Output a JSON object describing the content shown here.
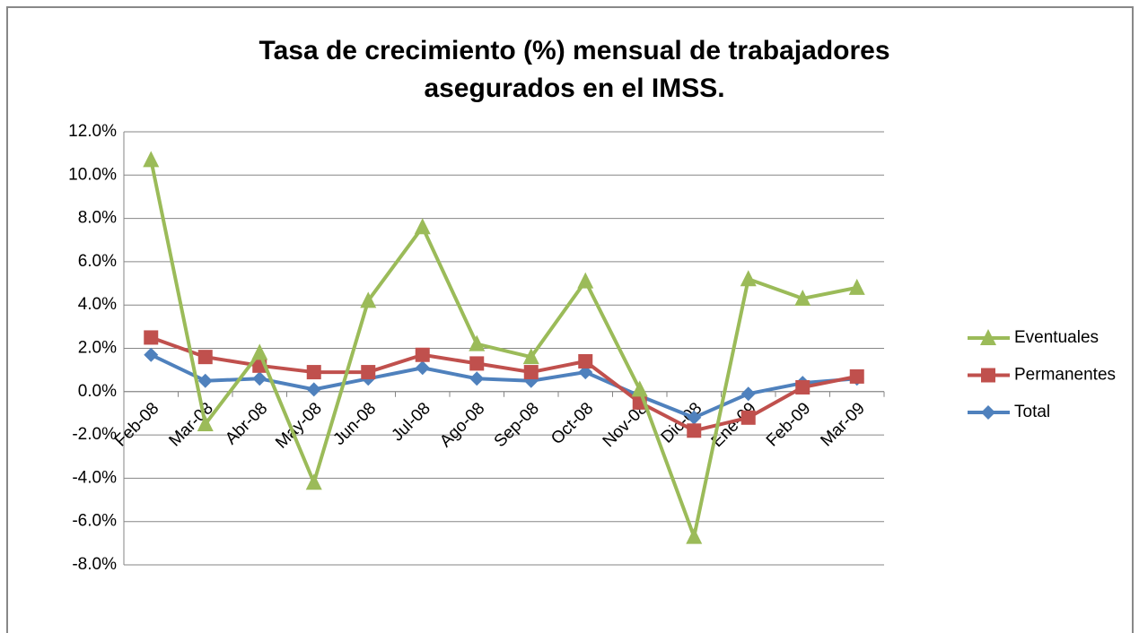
{
  "chart_data": {
    "type": "line",
    "title": "Tasa de crecimiento (%) mensual de trabajadores asegurados en el IMSS.",
    "categories": [
      "Feb-08",
      "Mar-08",
      "Abr-08",
      "May-08",
      "Jun-08",
      "Jul-08",
      "Ago-08",
      "Sep-08",
      "Oct-08",
      "Nov-08",
      "Dic-08",
      "Ene-09",
      "Feb-09",
      "Mar-09"
    ],
    "series": [
      {
        "name": "Eventuales",
        "color": "#9bbb59",
        "marker": "triangle",
        "values": [
          10.7,
          -1.5,
          1.8,
          -4.2,
          4.2,
          7.6,
          2.2,
          1.6,
          5.1,
          0.1,
          -6.7,
          5.2,
          4.3,
          4.8
        ]
      },
      {
        "name": "Permanentes",
        "color": "#c0504d",
        "marker": "square",
        "values": [
          2.5,
          1.6,
          1.2,
          0.9,
          0.9,
          1.7,
          1.3,
          0.9,
          1.4,
          -0.5,
          -1.8,
          -1.2,
          0.2,
          0.7
        ]
      },
      {
        "name": "Total",
        "color": "#4f81bd",
        "marker": "diamond",
        "values": [
          1.7,
          0.5,
          0.6,
          0.1,
          0.6,
          1.1,
          0.6,
          0.5,
          0.9,
          -0.2,
          -1.2,
          -0.1,
          0.4,
          0.6
        ]
      }
    ],
    "ylim": [
      -8,
      12
    ],
    "yticks": [
      {
        "value": -8,
        "label": "-8.0%"
      },
      {
        "value": -6,
        "label": "-6.0%"
      },
      {
        "value": -4,
        "label": "-4.0%"
      },
      {
        "value": -2,
        "label": "-2.0%"
      },
      {
        "value": 0,
        "label": "0.0%"
      },
      {
        "value": 2,
        "label": "2.0%"
      },
      {
        "value": 4,
        "label": "4.0%"
      },
      {
        "value": 6,
        "label": "6.0%"
      },
      {
        "value": 8,
        "label": "8.0%"
      },
      {
        "value": 10,
        "label": "10.0%"
      },
      {
        "value": 12,
        "label": "12.0%"
      }
    ],
    "grid": true,
    "legend": "right"
  }
}
